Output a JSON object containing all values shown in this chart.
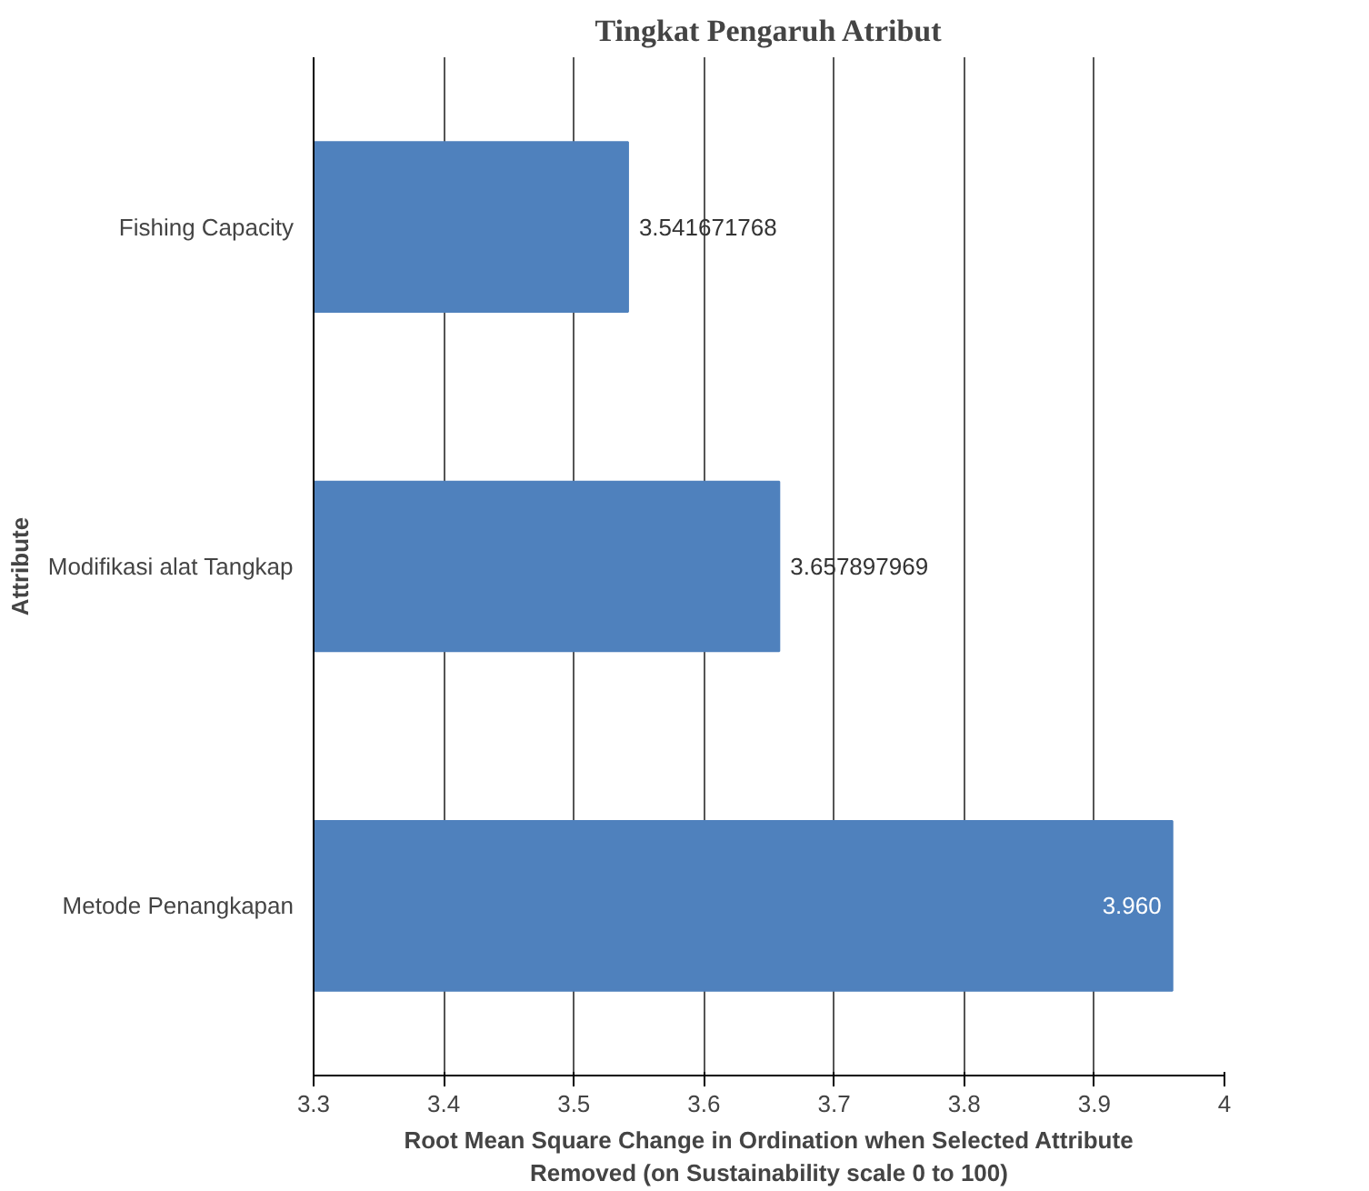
{
  "chart_data": {
    "type": "bar",
    "orientation": "horizontal",
    "title": "Tingkat Pengaruh Atribut",
    "xlabel": "Root Mean Square Change in Ordination when Selected Attribute Removed (on Sustainability scale 0 to 100)",
    "ylabel": "Attribute",
    "categories": [
      "Fishing Capacity",
      "Modifikasi alat Tangkap",
      "Metode Penangkapan"
    ],
    "values": [
      3.541671768,
      3.657897969,
      3.96
    ],
    "value_labels": [
      "3.541671768",
      "3.657897969",
      "3.960"
    ],
    "color": "#4f81bd",
    "xlim": [
      3.3,
      4
    ],
    "xticks": [
      3.3,
      3.4,
      3.5,
      3.6,
      3.7,
      3.8,
      3.9,
      4
    ],
    "grid": "x"
  }
}
